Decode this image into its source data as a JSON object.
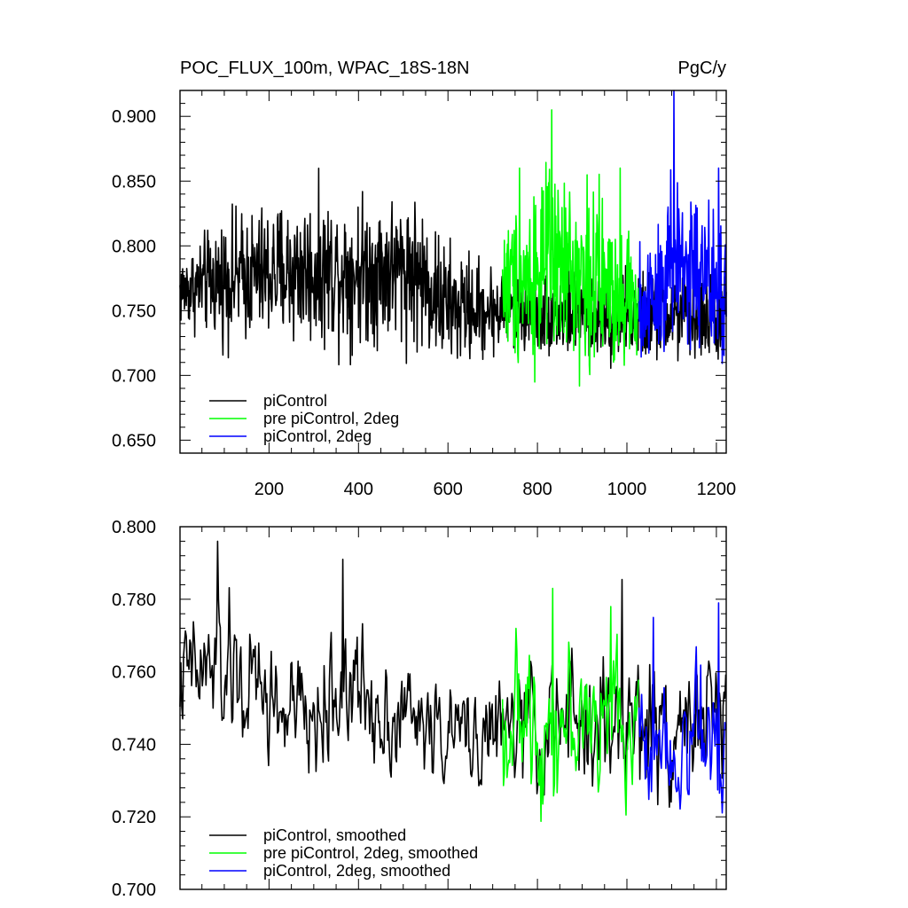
{
  "chart_data": [
    {
      "type": "line",
      "title": "POC_FLUX_100m, WPAC_18S-18N",
      "units": "PgC/y",
      "xlim": [
        1,
        1222
      ],
      "ylim": [
        0.64,
        0.92
      ],
      "xticks": [
        200,
        400,
        600,
        800,
        1000,
        1200
      ],
      "xtick_labels": [
        "200",
        "400",
        "600",
        "800",
        "1000",
        "1200"
      ],
      "yticks": [
        0.65,
        0.7,
        0.75,
        0.8,
        0.85,
        0.9
      ],
      "ytick_labels": [
        "0.650",
        "0.700",
        "0.750",
        "0.800",
        "0.850",
        "0.900"
      ],
      "legend": "bottom-left",
      "series": [
        {
          "name": "piControl",
          "color": "#000000",
          "x_range": [
            1,
            1222
          ],
          "x_step": 1,
          "mean": 0.755,
          "spread": 0.03,
          "trend": -2e-05,
          "envelope": [
            [
              1,
              0.72,
              0.81
            ],
            [
              100,
              0.7,
              0.85
            ],
            [
              245,
              0.69,
              0.87
            ],
            [
              520,
              0.69,
              0.875
            ],
            [
              600,
              0.675,
              0.83
            ],
            [
              720,
              0.7,
              0.8
            ],
            [
              1000,
              0.69,
              0.8
            ],
            [
              1222,
              0.69,
              0.8
            ]
          ]
        },
        {
          "name": "pre piControl, 2deg",
          "color": "#00ff00",
          "x_range": [
            722,
            1027
          ],
          "x_step": 1,
          "mean": 0.745,
          "spread": 0.045,
          "envelope": [
            [
              722,
              0.68,
              0.86
            ],
            [
              832,
              0.665,
              0.905
            ],
            [
              1000,
              0.67,
              0.86
            ],
            [
              1027,
              0.68,
              0.82
            ]
          ],
          "peaks": [
            [
              832,
              0.905
            ],
            [
              985,
              0.86
            ],
            [
              760,
              0.86
            ]
          ]
        },
        {
          "name": "piControl, 2deg",
          "color": "#0000ff",
          "x_range": [
            1027,
            1222
          ],
          "x_step": 1,
          "mean": 0.74,
          "spread": 0.035,
          "envelope": [
            [
              1027,
              0.67,
              0.82
            ],
            [
              1105,
              0.665,
              0.92
            ],
            [
              1222,
              0.66,
              0.86
            ]
          ],
          "peaks": [
            [
              1105,
              0.92
            ],
            [
              1205,
              0.86
            ]
          ]
        }
      ]
    },
    {
      "type": "line",
      "title": "",
      "xlim": [
        1,
        1222
      ],
      "ylim": [
        0.7,
        0.8
      ],
      "xticks": [
        200,
        400,
        600,
        800,
        1000,
        1200
      ],
      "yticks": [
        0.7,
        0.72,
        0.74,
        0.76,
        0.78,
        0.8
      ],
      "ytick_labels": [
        "0.700",
        "0.720",
        "0.740",
        "0.760",
        "0.780",
        "0.800"
      ],
      "legend": "bottom-left",
      "series": [
        {
          "name": "piControl, smoothed",
          "color": "#000000",
          "x_range": [
            1,
            1222
          ],
          "x_step": 2,
          "mean": 0.752,
          "spread": 0.012,
          "trend": -1.2e-05,
          "envelope": [
            [
              1,
              0.73,
              0.785
            ],
            [
              85,
              0.725,
              0.796
            ],
            [
              290,
              0.715,
              0.775
            ],
            [
              365,
              0.72,
              0.791
            ],
            [
              600,
              0.72,
              0.765
            ],
            [
              1000,
              0.705,
              0.786
            ],
            [
              1222,
              0.72,
              0.775
            ]
          ],
          "peaks": [
            [
              85,
              0.796
            ],
            [
              365,
              0.791
            ],
            [
              990,
              0.786
            ]
          ]
        },
        {
          "name": "pre piControl, 2deg, smoothed",
          "color": "#00ff00",
          "x_range": [
            722,
            1027
          ],
          "x_step": 2,
          "mean": 0.745,
          "spread": 0.014,
          "envelope": [
            [
              722,
              0.71,
              0.78
            ],
            [
              835,
              0.71,
              0.783
            ],
            [
              1027,
              0.715,
              0.778
            ]
          ],
          "peaks": [
            [
              835,
              0.783
            ],
            [
              965,
              0.778
            ]
          ]
        },
        {
          "name": "piControl, 2deg, smoothed",
          "color": "#0000ff",
          "x_range": [
            1027,
            1222
          ],
          "x_step": 2,
          "mean": 0.742,
          "spread": 0.014,
          "envelope": [
            [
              1027,
              0.71,
              0.775
            ],
            [
              1205,
              0.708,
              0.779
            ],
            [
              1222,
              0.72,
              0.77
            ]
          ],
          "peaks": [
            [
              1205,
              0.779
            ],
            [
              1060,
              0.775
            ]
          ]
        }
      ]
    }
  ]
}
